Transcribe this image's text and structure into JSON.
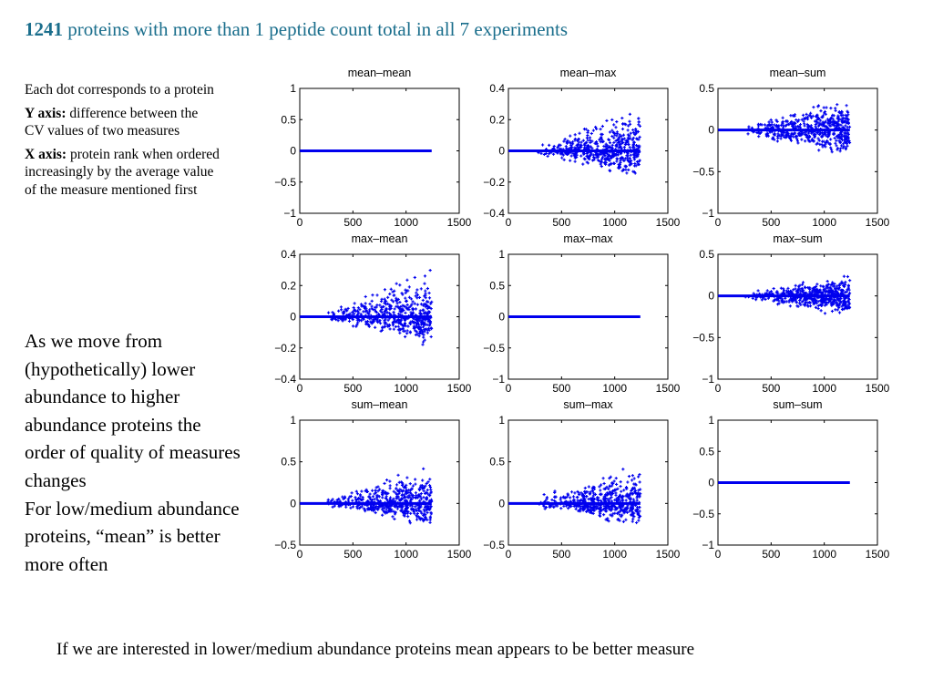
{
  "title": {
    "number": "1241",
    "rest": " proteins with more than 1 peptide count total in all 7 experiments"
  },
  "notes": {
    "line1": "Each dot corresponds to a protein",
    "y_label": "Y axis:",
    "y_text": " difference between the CV values of two measures",
    "x_label": "X axis:",
    "x_text": " protein rank when ordered increasingly by the average value of the measure mentioned first"
  },
  "observations": {
    "p1": "As we move from (hypothetically) lower abundance to higher abundance proteins the order of quality of measures changes",
    "p2": "For low/medium abundance proteins, “mean” is better more often"
  },
  "conclusion": "If we are interested in lower/medium abundance proteins mean appears to be better measure",
  "colors": {
    "title": "#1a6e8c",
    "dots": "#0000ee",
    "axes": "#000000"
  },
  "chart_data": [
    {
      "type": "scatter",
      "title": "mean–mean",
      "xlim": [
        0,
        1500
      ],
      "ylim": [
        -1,
        1
      ],
      "xticks": [
        "0",
        "500",
        "1000",
        "1500"
      ],
      "yticks": [
        "1",
        "0.5",
        "0",
        "−0.5",
        "−1"
      ],
      "n_points": 1241,
      "spread_max": 0,
      "zero_line_until": 1241
    },
    {
      "type": "scatter",
      "title": "mean–max",
      "xlim": [
        0,
        1500
      ],
      "ylim": [
        -0.4,
        0.4
      ],
      "xticks": [
        "0",
        "500",
        "1000",
        "1500"
      ],
      "yticks": [
        "0.4",
        "0.2",
        "0",
        "−0.2",
        "−0.4"
      ],
      "n_points": 1241,
      "spread_max": 0.33,
      "zero_line_until": 600
    },
    {
      "type": "scatter",
      "title": "mean–sum",
      "xlim": [
        0,
        1500
      ],
      "ylim": [
        -1,
        0.5
      ],
      "xticks": [
        "0",
        "500",
        "1000",
        "1500"
      ],
      "yticks": [
        "0.5",
        "0",
        "−0.5",
        "−1"
      ],
      "n_points": 1241,
      "spread_max": 0.45,
      "zero_line_until": 700
    },
    {
      "type": "scatter",
      "title": "max–mean",
      "xlim": [
        0,
        1500
      ],
      "ylim": [
        -0.4,
        0.4
      ],
      "xticks": [
        "0",
        "500",
        "1000",
        "1500"
      ],
      "yticks": [
        "0.4",
        "0.2",
        "0",
        "−0.2",
        "−0.4"
      ],
      "n_points": 1241,
      "spread_max": 0.37,
      "zero_line_until": 650
    },
    {
      "type": "scatter",
      "title": "max–max",
      "xlim": [
        0,
        1500
      ],
      "ylim": [
        -1,
        1
      ],
      "xticks": [
        "0",
        "500",
        "1000",
        "1500"
      ],
      "yticks": [
        "1",
        "0.5",
        "0",
        "−0.5",
        "−1"
      ],
      "n_points": 1241,
      "spread_max": 0,
      "zero_line_until": 1241
    },
    {
      "type": "scatter",
      "title": "max–sum",
      "xlim": [
        0,
        1500
      ],
      "ylim": [
        -1,
        0.5
      ],
      "xticks": [
        "0",
        "500",
        "1000",
        "1500"
      ],
      "yticks": [
        "0.5",
        "0",
        "−0.5",
        "−1"
      ],
      "n_points": 1241,
      "spread_max": 0.3,
      "zero_line_until": 750
    },
    {
      "type": "scatter",
      "title": "sum–mean",
      "xlim": [
        0,
        1500
      ],
      "ylim": [
        -0.5,
        1
      ],
      "xticks": [
        "0",
        "500",
        "1000",
        "1500"
      ],
      "yticks": [
        "1",
        "0.5",
        "0",
        "−0.5"
      ],
      "n_points": 1241,
      "spread_max": 0.55,
      "zero_line_until": 600
    },
    {
      "type": "scatter",
      "title": "sum–max",
      "xlim": [
        0,
        1500
      ],
      "ylim": [
        -0.5,
        1
      ],
      "xticks": [
        "0",
        "500",
        "1000",
        "1500"
      ],
      "yticks": [
        "1",
        "0.5",
        "0",
        "−0.5"
      ],
      "n_points": 1241,
      "spread_max": 0.55,
      "zero_line_until": 650
    },
    {
      "type": "scatter",
      "title": "sum–sum",
      "xlim": [
        0,
        1500
      ],
      "ylim": [
        -1,
        1
      ],
      "xticks": [
        "0",
        "500",
        "1000",
        "1500"
      ],
      "yticks": [
        "1",
        "0.5",
        "0",
        "−0.5",
        "−1"
      ],
      "n_points": 1241,
      "spread_max": 0,
      "zero_line_until": 1241
    }
  ]
}
